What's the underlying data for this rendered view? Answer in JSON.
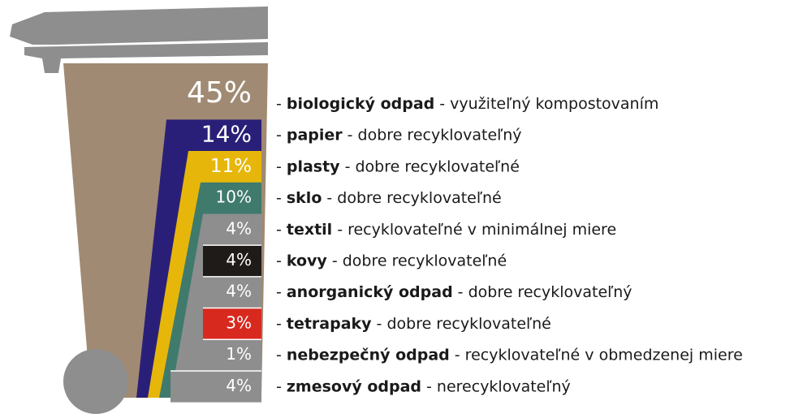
{
  "chart_data": {
    "type": "bin",
    "categories": [
      "biologický odpad",
      "papier",
      "plasty",
      "sklo",
      "textil",
      "kovy",
      "anorganický odpad",
      "tetrapaky",
      "nebezpečný odpad",
      "zmesový odpad"
    ],
    "descriptions": [
      "- využiteľný kompostovaním",
      "- dobre recyklovateľný",
      "- dobre recyklovateľné",
      "- dobre recyklovateľné",
      "- recyklovateľné v minimálnej miere",
      "- dobre recyklovateľné",
      "- dobre recyklovateľný",
      "- dobre recyklovateľné",
      "- recyklovateľné v obmedzenej miere",
      "- nerecyklovateľný"
    ],
    "bullet": "-",
    "values": [
      45,
      14,
      11,
      10,
      4,
      4,
      4,
      3,
      1,
      4
    ],
    "value_labels": [
      "45%",
      "14%",
      "11%",
      "10%",
      "4%",
      "4%",
      "4%",
      "3%",
      "1%",
      "4%"
    ],
    "colors": [
      "#a08a73",
      "#2a1f78",
      "#e6b70a",
      "#3f7a6d",
      "#8e8e8e",
      "#1f1b18",
      "#8e8e8e",
      "#d8291f",
      "#8e8e8e",
      "#8e8e8e"
    ]
  }
}
